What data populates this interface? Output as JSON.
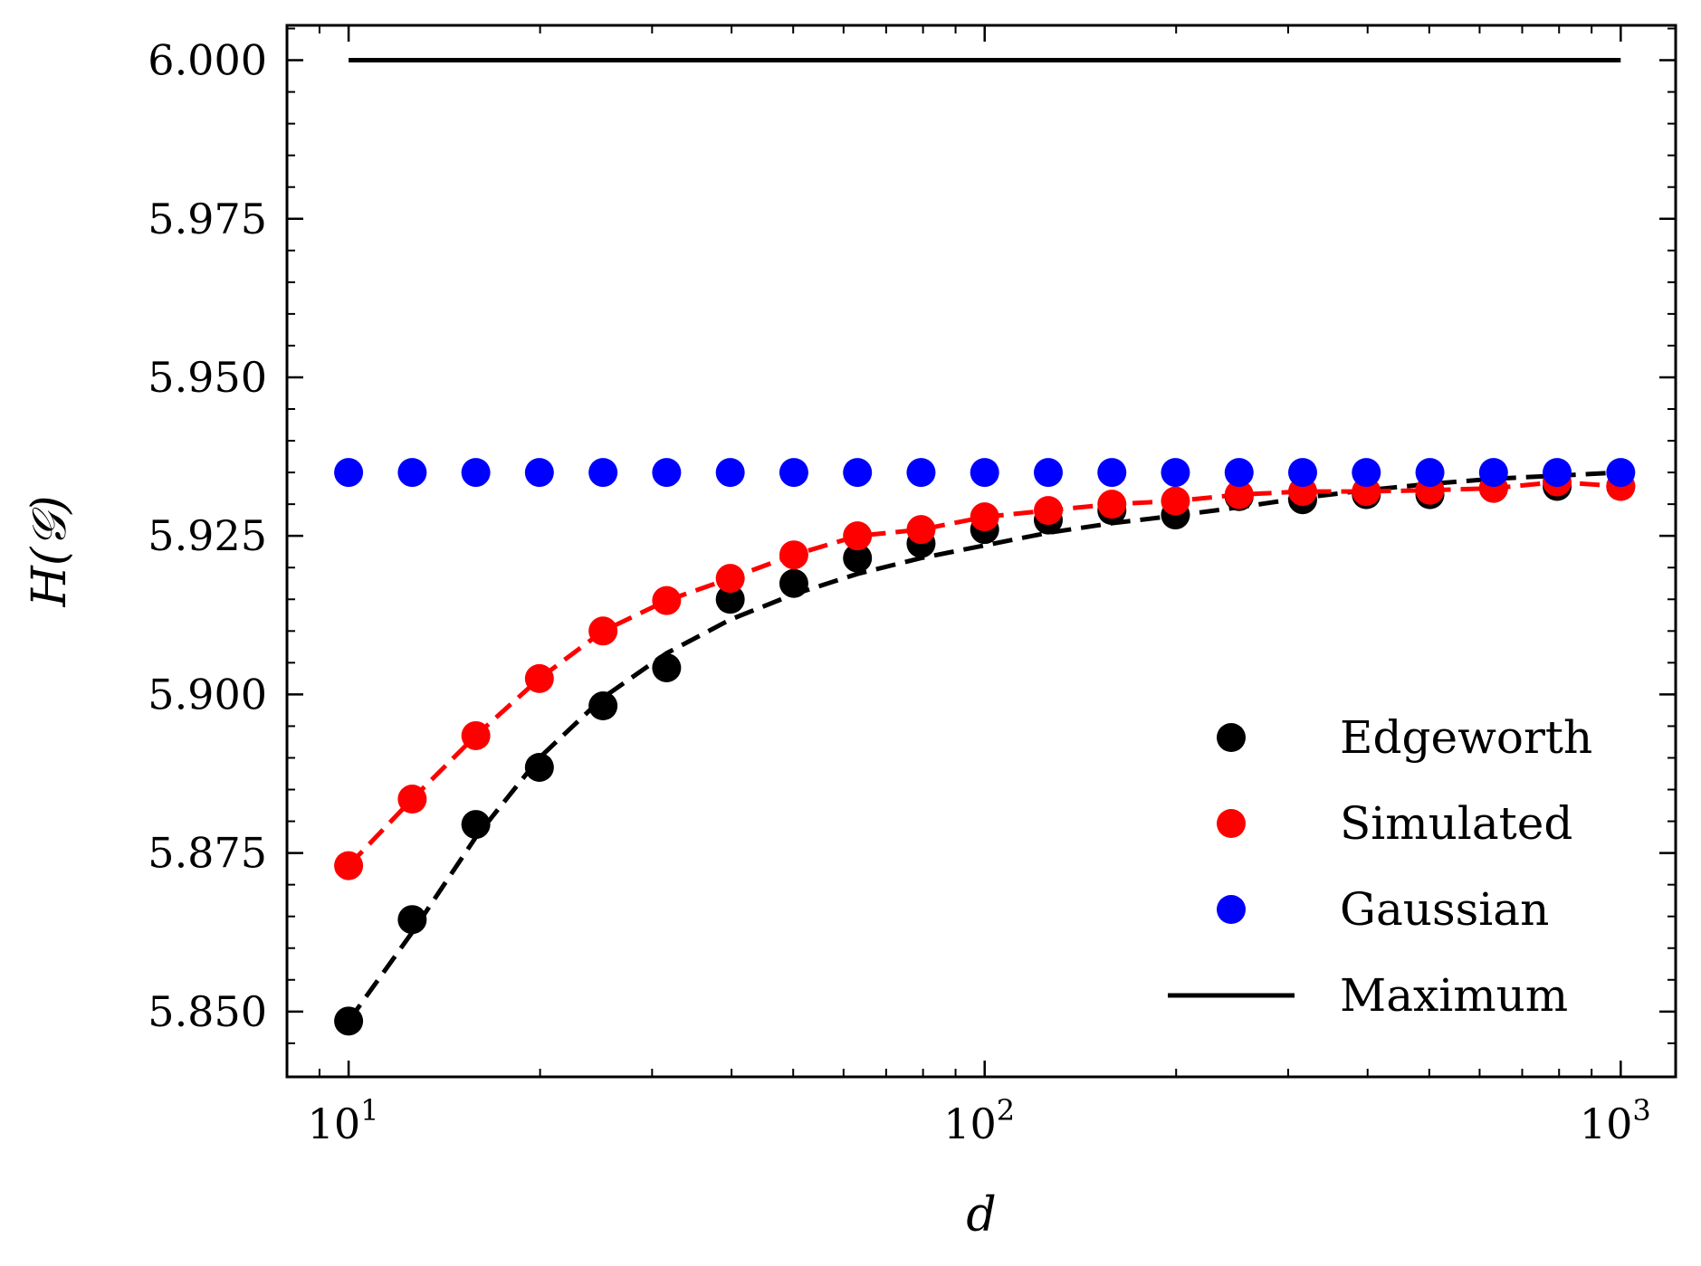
{
  "chart_data": {
    "type": "scatter",
    "title": "",
    "xlabel": "d",
    "ylabel": "H(𝒢)",
    "xscale": "log",
    "xlim": [
      8.0,
      1220.0
    ],
    "ylim": [
      5.8397,
      6.0055
    ],
    "grid": false,
    "legend_position": "lower-right",
    "x_ticks": [
      {
        "value": 10,
        "base": "10",
        "exp": "1"
      },
      {
        "value": 100,
        "base": "10",
        "exp": "2"
      },
      {
        "value": 1000,
        "base": "10",
        "exp": "3"
      }
    ],
    "y_ticks": [
      {
        "value": 5.85,
        "label": "5.850"
      },
      {
        "value": 5.875,
        "label": "5.875"
      },
      {
        "value": 5.9,
        "label": "5.900"
      },
      {
        "value": 5.925,
        "label": "5.925"
      },
      {
        "value": 5.95,
        "label": "5.950"
      },
      {
        "value": 5.975,
        "label": "5.975"
      },
      {
        "value": 6.0,
        "label": "6.000"
      }
    ],
    "x": [
      10,
      12.59,
      15.85,
      19.95,
      25.12,
      31.62,
      39.81,
      50.12,
      63.1,
      79.43,
      100,
      125.9,
      158.5,
      199.5,
      251.2,
      316.2,
      398.1,
      501.2,
      631,
      794.3,
      1000
    ],
    "series": [
      {
        "name": "Edgeworth",
        "style": "markers",
        "color": "#000000",
        "values": [
          5.8485,
          5.8645,
          5.8795,
          5.8885,
          5.8982,
          5.9042,
          5.915,
          5.9175,
          5.9215,
          5.9238,
          5.926,
          5.9275,
          5.929,
          5.9283,
          5.9312,
          5.9307,
          5.9315,
          5.9315,
          5.9325,
          5.9328,
          5.9328
        ]
      },
      {
        "name": "Simulated",
        "style": "markers",
        "color": "#ff0000",
        "values": [
          5.873,
          5.8835,
          5.8935,
          5.9025,
          5.91,
          5.9148,
          5.9183,
          5.922,
          5.925,
          5.926,
          5.928,
          5.929,
          5.93,
          5.9305,
          5.9315,
          5.932,
          5.932,
          5.9322,
          5.9325,
          5.9335,
          5.9328
        ]
      },
      {
        "name": "Gaussian",
        "style": "markers",
        "color": "#0000ff",
        "values": [
          5.935,
          5.935,
          5.935,
          5.935,
          5.935,
          5.935,
          5.935,
          5.935,
          5.935,
          5.935,
          5.935,
          5.935,
          5.935,
          5.935,
          5.935,
          5.935,
          5.935,
          5.935,
          5.935,
          5.935,
          5.935
        ]
      },
      {
        "name": "Maximum",
        "style": "line",
        "color": "#000000",
        "values": [
          6.0,
          6.0,
          6.0,
          6.0,
          6.0,
          6.0,
          6.0,
          6.0,
          6.0,
          6.0,
          6.0,
          6.0,
          6.0,
          6.0,
          6.0,
          6.0,
          6.0,
          6.0,
          6.0,
          6.0,
          6.0
        ]
      },
      {
        "name": "Edgeworth fit",
        "style": "dashed",
        "color": "#000000",
        "in_legend": false,
        "values": [
          5.8485,
          5.8625,
          5.8775,
          5.89,
          5.8995,
          5.9065,
          5.9118,
          5.9158,
          5.919,
          5.9215,
          5.9235,
          5.9255,
          5.927,
          5.9282,
          5.9295,
          5.931,
          5.9322,
          5.9332,
          5.934,
          5.9345,
          5.935
        ]
      },
      {
        "name": "Simulated fit",
        "style": "dashed",
        "color": "#ff0000",
        "in_legend": false,
        "values": [
          5.873,
          5.8835,
          5.8935,
          5.9025,
          5.91,
          5.9148,
          5.9183,
          5.922,
          5.925,
          5.926,
          5.928,
          5.929,
          5.93,
          5.9305,
          5.9315,
          5.932,
          5.932,
          5.9322,
          5.9325,
          5.9335,
          5.9328
        ]
      }
    ],
    "legend": [
      "Edgeworth",
      "Simulated",
      "Gaussian",
      "Maximum"
    ]
  }
}
